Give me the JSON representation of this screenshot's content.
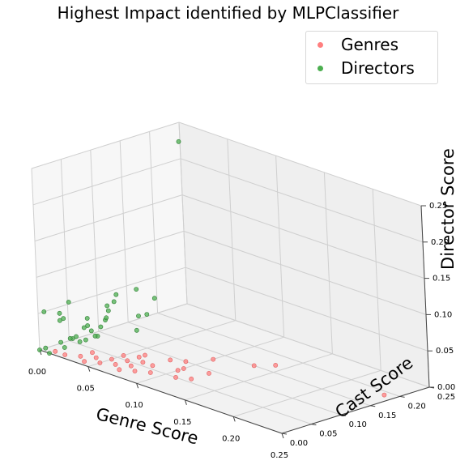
{
  "chart_data": {
    "type": "scatter",
    "projection": "3d",
    "title": "Highest Impact identified by MLPClassifier",
    "xlabel": "Genre Score",
    "ylabel": "Cast Score",
    "zlabel": "Director Score",
    "xlim": [
      0,
      0.25
    ],
    "ylim": [
      0,
      0.25
    ],
    "zlim": [
      0,
      0.25
    ],
    "x_ticks": [
      "0.00",
      "0.05",
      "0.10",
      "0.15",
      "0.20",
      "0.25"
    ],
    "y_ticks": [
      "0.00",
      "0.05",
      "0.10",
      "0.15",
      "0.20",
      "0.25"
    ],
    "z_ticks": [
      "0.00",
      "0.05",
      "0.10",
      "0.15",
      "0.20",
      "0.25"
    ],
    "grid": true,
    "legend_position": "top-right",
    "series": [
      {
        "name": "Genres",
        "color": "#ff7f7f",
        "points": [
          [
            0.24,
            0.19,
            0.0
          ],
          [
            0.14,
            0.17,
            0.0
          ],
          [
            0.13,
            0.15,
            0.0
          ],
          [
            0.1,
            0.13,
            0.0
          ],
          [
            0.12,
            0.09,
            0.0
          ],
          [
            0.09,
            0.1,
            0.0
          ],
          [
            0.1,
            0.08,
            0.0
          ],
          [
            0.08,
            0.09,
            0.0
          ],
          [
            0.07,
            0.06,
            0.0
          ],
          [
            0.06,
            0.08,
            0.0
          ],
          [
            0.08,
            0.06,
            0.0
          ],
          [
            0.06,
            0.05,
            0.0
          ],
          [
            0.07,
            0.04,
            0.0
          ],
          [
            0.05,
            0.04,
            0.0
          ],
          [
            0.06,
            0.03,
            0.0
          ],
          [
            0.05,
            0.02,
            0.0
          ],
          [
            0.04,
            0.03,
            0.0
          ],
          [
            0.03,
            0.02,
            0.0
          ],
          [
            0.02,
            0.01,
            0.0
          ],
          [
            0.01,
            0.01,
            0.0
          ],
          [
            0.09,
            0.04,
            0.0
          ],
          [
            0.11,
            0.05,
            0.0
          ],
          [
            0.1,
            0.07,
            0.0
          ],
          [
            0.12,
            0.06,
            0.0
          ],
          [
            0.07,
            0.02,
            0.0
          ],
          [
            0.04,
            0.01,
            0.0
          ],
          [
            0.03,
            0.04,
            0.0
          ],
          [
            0.05,
            0.06,
            0.0
          ],
          [
            0.08,
            0.03,
            0.0
          ],
          [
            0.06,
            0.07,
            0.0
          ]
        ]
      },
      {
        "name": "Directors",
        "color": "#4caf50",
        "points": [
          [
            0.03,
            0.2,
            0.25
          ],
          [
            0.01,
            0.18,
            0.03
          ],
          [
            0.02,
            0.15,
            0.02
          ],
          [
            0.01,
            0.1,
            0.04
          ],
          [
            0.01,
            0.15,
            0.05
          ],
          [
            0.03,
            0.12,
            0.03
          ],
          [
            0.02,
            0.08,
            0.03
          ],
          [
            0.04,
            0.1,
            0.02
          ],
          [
            0.02,
            0.05,
            0.04
          ],
          [
            0.01,
            0.06,
            0.02
          ],
          [
            0.03,
            0.05,
            0.02
          ],
          [
            0.01,
            0.04,
            0.01
          ],
          [
            0.02,
            0.03,
            0.02
          ],
          [
            0.01,
            0.02,
            0.01
          ],
          [
            0.02,
            0.01,
            0.01
          ],
          [
            0.0,
            0.0,
            0.0
          ],
          [
            0.01,
            0.0,
            0.0
          ],
          [
            0.0,
            0.01,
            0.0
          ],
          [
            0.03,
            0.02,
            0.02
          ],
          [
            0.04,
            0.03,
            0.03
          ],
          [
            0.03,
            0.04,
            0.03
          ],
          [
            0.02,
            0.05,
            0.03
          ],
          [
            0.03,
            0.03,
            0.02
          ],
          [
            0.02,
            0.02,
            0.02
          ],
          [
            0.04,
            0.05,
            0.05
          ],
          [
            0.04,
            0.04,
            0.04
          ],
          [
            0.02,
            0.01,
            0.05
          ],
          [
            0.01,
            0.02,
            0.04
          ],
          [
            0.03,
            0.07,
            0.05
          ],
          [
            0.03,
            0.08,
            0.06
          ],
          [
            0.02,
            0.1,
            0.06
          ],
          [
            0.02,
            0.02,
            0.07
          ],
          [
            0.01,
            0.02,
            0.05
          ],
          [
            0.0,
            0.01,
            0.05
          ]
        ]
      }
    ]
  }
}
